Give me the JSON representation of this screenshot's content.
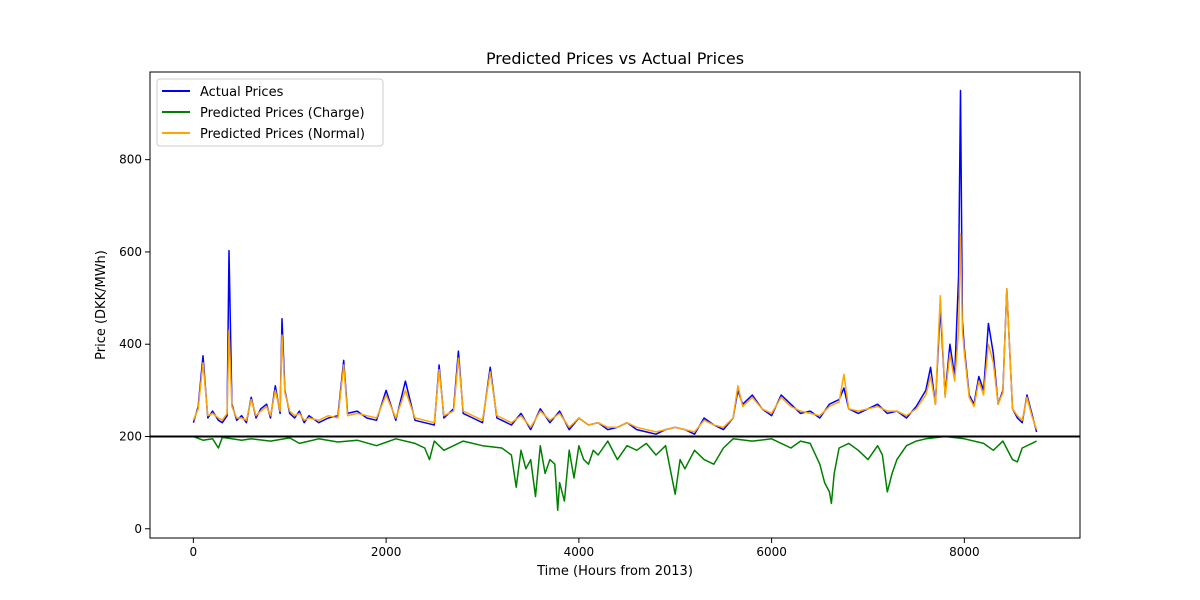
{
  "chart_data": {
    "type": "line",
    "title": "Predicted Prices vs Actual Prices",
    "xlabel": "Time (Hours from 2013)",
    "ylabel": "Price (DKK/MWh)",
    "xlim": [
      -450,
      9200
    ],
    "ylim": [
      -20,
      990
    ],
    "xticks": [
      0,
      2000,
      4000,
      6000,
      8000
    ],
    "yticks": [
      0,
      200,
      400,
      600,
      800
    ],
    "grid": false,
    "legend_position": "top-left",
    "reference_line": {
      "y": 200,
      "color": "#000000"
    },
    "series": [
      {
        "name": "Actual Prices",
        "color": "#0000ff",
        "x": [
          0,
          50,
          100,
          150,
          200,
          260,
          300,
          350,
          370,
          400,
          450,
          500,
          550,
          600,
          650,
          700,
          760,
          800,
          850,
          900,
          920,
          950,
          1000,
          1050,
          1100,
          1150,
          1200,
          1300,
          1400,
          1500,
          1560,
          1600,
          1700,
          1800,
          1900,
          2000,
          2100,
          2200,
          2300,
          2400,
          2500,
          2550,
          2600,
          2700,
          2750,
          2800,
          2900,
          3000,
          3080,
          3150,
          3200,
          3300,
          3400,
          3500,
          3600,
          3700,
          3800,
          3900,
          4000,
          4100,
          4200,
          4300,
          4400,
          4500,
          4600,
          4700,
          4800,
          4900,
          5000,
          5100,
          5200,
          5300,
          5400,
          5500,
          5600,
          5650,
          5700,
          5800,
          5900,
          6000,
          6100,
          6200,
          6300,
          6400,
          6500,
          6600,
          6700,
          6750,
          6800,
          6900,
          7000,
          7100,
          7200,
          7300,
          7400,
          7500,
          7600,
          7650,
          7700,
          7750,
          7800,
          7850,
          7900,
          7940,
          7960,
          7980,
          8000,
          8050,
          8100,
          8150,
          8200,
          8250,
          8300,
          8350,
          8400,
          8440,
          8500,
          8550,
          8600,
          8650,
          8700,
          8750
        ],
        "y": [
          230,
          265,
          375,
          240,
          255,
          235,
          230,
          245,
          603,
          270,
          235,
          245,
          230,
          285,
          240,
          260,
          270,
          240,
          310,
          250,
          455,
          300,
          250,
          240,
          255,
          230,
          245,
          230,
          240,
          245,
          365,
          250,
          255,
          240,
          235,
          300,
          235,
          320,
          235,
          230,
          225,
          355,
          240,
          260,
          385,
          250,
          240,
          230,
          350,
          240,
          235,
          225,
          250,
          215,
          260,
          230,
          255,
          215,
          240,
          225,
          230,
          215,
          220,
          230,
          215,
          210,
          205,
          215,
          220,
          215,
          205,
          240,
          225,
          215,
          240,
          300,
          270,
          290,
          260,
          245,
          290,
          270,
          250,
          255,
          240,
          270,
          280,
          305,
          260,
          250,
          260,
          270,
          250,
          255,
          240,
          265,
          300,
          350,
          270,
          480,
          290,
          400,
          330,
          550,
          950,
          450,
          390,
          290,
          270,
          330,
          300,
          445,
          380,
          270,
          300,
          520,
          260,
          240,
          230,
          290,
          250,
          210
        ]
      },
      {
        "name": "Predicted Prices (Charge)",
        "color": "#008000",
        "x": [
          0,
          100,
          200,
          260,
          300,
          400,
          500,
          600,
          800,
          1000,
          1100,
          1200,
          1300,
          1500,
          1700,
          1900,
          2100,
          2300,
          2400,
          2450,
          2500,
          2600,
          2800,
          3000,
          3200,
          3300,
          3350,
          3400,
          3450,
          3500,
          3550,
          3600,
          3650,
          3700,
          3750,
          3780,
          3800,
          3850,
          3900,
          3950,
          4000,
          4050,
          4100,
          4150,
          4200,
          4300,
          4400,
          4500,
          4600,
          4700,
          4800,
          4900,
          5000,
          5050,
          5100,
          5200,
          5300,
          5400,
          5500,
          5600,
          5800,
          6000,
          6200,
          6300,
          6400,
          6500,
          6550,
          6600,
          6620,
          6650,
          6700,
          6800,
          6900,
          7000,
          7100,
          7150,
          7200,
          7250,
          7300,
          7400,
          7500,
          7600,
          7800,
          8000,
          8200,
          8300,
          8400,
          8500,
          8550,
          8600,
          8700,
          8750
        ],
        "y": [
          200,
          192,
          195,
          175,
          198,
          195,
          192,
          195,
          190,
          197,
          185,
          190,
          195,
          188,
          192,
          180,
          195,
          185,
          175,
          150,
          190,
          170,
          190,
          180,
          175,
          160,
          90,
          170,
          130,
          150,
          70,
          180,
          120,
          150,
          140,
          40,
          100,
          60,
          170,
          110,
          180,
          150,
          140,
          170,
          160,
          190,
          150,
          180,
          170,
          185,
          160,
          180,
          75,
          150,
          130,
          170,
          150,
          140,
          175,
          195,
          190,
          195,
          175,
          190,
          185,
          140,
          100,
          80,
          55,
          120,
          175,
          185,
          170,
          150,
          180,
          160,
          80,
          120,
          150,
          180,
          190,
          195,
          200,
          195,
          185,
          170,
          190,
          150,
          145,
          175,
          185,
          190
        ]
      },
      {
        "name": "Predicted Prices (Normal)",
        "color": "#ffa500",
        "x": [
          0,
          50,
          100,
          150,
          200,
          260,
          300,
          350,
          370,
          400,
          450,
          500,
          550,
          600,
          650,
          700,
          760,
          800,
          850,
          900,
          920,
          950,
          1000,
          1050,
          1100,
          1150,
          1200,
          1300,
          1400,
          1500,
          1560,
          1600,
          1700,
          1800,
          1900,
          2000,
          2100,
          2200,
          2300,
          2400,
          2500,
          2550,
          2600,
          2700,
          2750,
          2800,
          2900,
          3000,
          3080,
          3150,
          3200,
          3300,
          3400,
          3500,
          3600,
          3700,
          3800,
          3900,
          4000,
          4100,
          4200,
          4300,
          4400,
          4500,
          4600,
          4700,
          4800,
          4900,
          5000,
          5100,
          5200,
          5300,
          5400,
          5500,
          5600,
          5650,
          5700,
          5800,
          5900,
          6000,
          6100,
          6200,
          6300,
          6400,
          6500,
          6600,
          6700,
          6750,
          6800,
          6900,
          7000,
          7100,
          7200,
          7300,
          7400,
          7500,
          7600,
          7650,
          7700,
          7750,
          7800,
          7850,
          7900,
          7940,
          7960,
          7980,
          8000,
          8050,
          8100,
          8150,
          8200,
          8250,
          8300,
          8350,
          8400,
          8440,
          8500,
          8550,
          8600,
          8650,
          8700,
          8750
        ],
        "y": [
          235,
          260,
          360,
          245,
          250,
          240,
          235,
          250,
          430,
          265,
          240,
          240,
          235,
          280,
          245,
          255,
          265,
          245,
          300,
          255,
          420,
          295,
          255,
          245,
          250,
          235,
          240,
          235,
          245,
          240,
          355,
          245,
          250,
          245,
          240,
          290,
          240,
          300,
          240,
          235,
          230,
          345,
          245,
          255,
          370,
          255,
          245,
          235,
          340,
          245,
          240,
          230,
          245,
          220,
          255,
          235,
          250,
          220,
          240,
          225,
          230,
          220,
          220,
          230,
          220,
          215,
          210,
          215,
          220,
          215,
          210,
          235,
          225,
          220,
          240,
          310,
          265,
          285,
          260,
          250,
          285,
          265,
          255,
          250,
          245,
          265,
          275,
          335,
          260,
          255,
          260,
          265,
          255,
          255,
          245,
          260,
          290,
          330,
          270,
          505,
          285,
          380,
          320,
          430,
          640,
          430,
          380,
          285,
          265,
          320,
          290,
          400,
          360,
          270,
          295,
          520,
          260,
          245,
          235,
          285,
          245,
          215
        ]
      }
    ]
  }
}
